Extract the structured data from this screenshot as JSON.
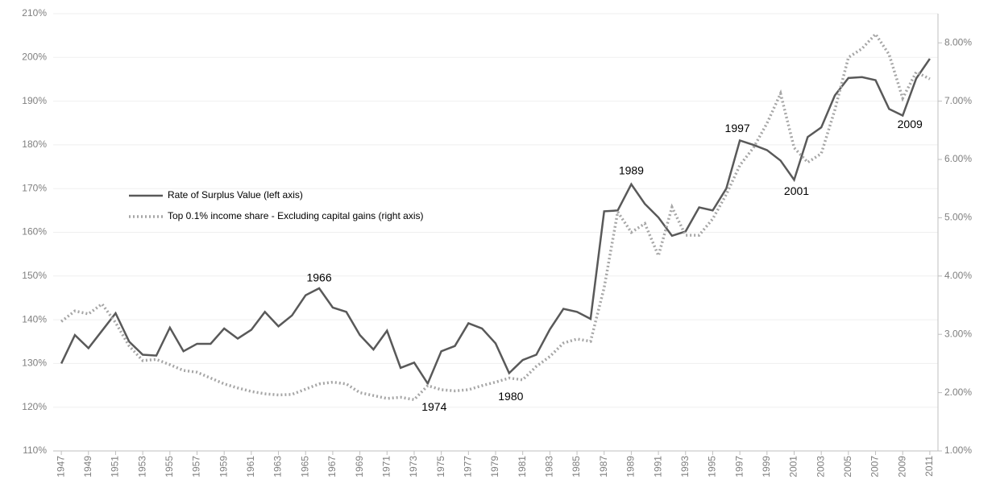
{
  "chart_data": {
    "type": "line",
    "x": [
      1947,
      1948,
      1949,
      1950,
      1951,
      1952,
      1953,
      1954,
      1955,
      1956,
      1957,
      1958,
      1959,
      1960,
      1961,
      1962,
      1963,
      1964,
      1965,
      1966,
      1967,
      1968,
      1969,
      1970,
      1971,
      1972,
      1973,
      1974,
      1975,
      1976,
      1977,
      1978,
      1979,
      1980,
      1981,
      1982,
      1983,
      1984,
      1985,
      1986,
      1987,
      1988,
      1989,
      1990,
      1991,
      1992,
      1993,
      1994,
      1995,
      1996,
      1997,
      1998,
      1999,
      2000,
      2001,
      2002,
      2003,
      2004,
      2005,
      2006,
      2007,
      2008,
      2009,
      2010,
      2011
    ],
    "xlim": [
      1946.4,
      2011.6
    ],
    "xticks": [
      1947,
      1949,
      1951,
      1953,
      1955,
      1957,
      1959,
      1961,
      1963,
      1965,
      1967,
      1969,
      1971,
      1973,
      1975,
      1977,
      1979,
      1981,
      1983,
      1985,
      1987,
      1989,
      1991,
      1993,
      1995,
      1997,
      1999,
      2001,
      2003,
      2005,
      2007,
      2009,
      2011
    ],
    "ylim": [
      110,
      210
    ],
    "yticks": [
      {
        "value": 110,
        "label": "110%"
      },
      {
        "value": 120,
        "label": "120%"
      },
      {
        "value": 130,
        "label": "130%"
      },
      {
        "value": 140,
        "label": "140%"
      },
      {
        "value": 150,
        "label": "150%"
      },
      {
        "value": 160,
        "label": "160%"
      },
      {
        "value": 170,
        "label": "170%"
      },
      {
        "value": 180,
        "label": "180%"
      },
      {
        "value": 190,
        "label": "190%"
      },
      {
        "value": 200,
        "label": "200%"
      },
      {
        "value": 210,
        "label": "210%"
      }
    ],
    "y2lim": [
      1,
      8.5
    ],
    "y2ticks": [
      {
        "value": 1,
        "label": "1.00%"
      },
      {
        "value": 2,
        "label": "2.00%"
      },
      {
        "value": 3,
        "label": "3.00%"
      },
      {
        "value": 4,
        "label": "4.00%"
      },
      {
        "value": 5,
        "label": "5.00%"
      },
      {
        "value": 6,
        "label": "6.00%"
      },
      {
        "value": 7,
        "label": "7.00%"
      },
      {
        "value": 8,
        "label": "8.00%"
      }
    ],
    "grid": true,
    "legend": "center-left",
    "series": [
      {
        "name": "Rate of Surplus Value (left axis)",
        "color": "#595959",
        "style": "solid",
        "values": [
          130,
          136.5,
          133.5,
          137.5,
          141.5,
          135,
          132,
          131.8,
          138.2,
          132.8,
          134.5,
          134.5,
          138,
          135.7,
          137.7,
          141.8,
          138.5,
          141,
          145.6,
          147.2,
          142.8,
          141.8,
          136.5,
          133.2,
          137.5,
          129,
          130.2,
          125.4,
          132.8,
          134,
          139.2,
          138,
          134.6,
          127.8,
          130.8,
          132,
          137.8,
          142.5,
          141.8,
          140.2,
          164.8,
          165,
          171,
          166.5,
          163.4,
          159.2,
          160.2,
          165.7,
          165,
          170,
          181,
          180,
          178.8,
          176.4,
          172,
          181.8,
          184,
          191.3,
          195.3,
          195.5,
          194.8,
          188.2,
          186.7,
          195.2,
          199.7
        ]
      },
      {
        "name": "Top 0.1% income share - Excluding capital gains (right axis)",
        "color": "#a6a6a6",
        "style": "dotted",
        "axis": "y2",
        "values": [
          3.22,
          3.4,
          3.35,
          3.52,
          3.2,
          2.8,
          2.55,
          2.57,
          2.48,
          2.38,
          2.35,
          2.25,
          2.15,
          2.08,
          2.02,
          1.98,
          1.96,
          1.97,
          2.06,
          2.15,
          2.18,
          2.15,
          2,
          1.95,
          1.9,
          1.92,
          1.88,
          2.12,
          2.05,
          2.03,
          2.05,
          2.12,
          2.18,
          2.25,
          2.22,
          2.45,
          2.62,
          2.85,
          2.92,
          2.88,
          3.8,
          5.1,
          4.75,
          4.9,
          4.35,
          5.18,
          4.7,
          4.7,
          4.98,
          5.4,
          5.9,
          6.2,
          6.62,
          7.13,
          6.2,
          5.95,
          6.1,
          6.85,
          7.75,
          7.9,
          8.15,
          7.8,
          7.05,
          7.5,
          7.38
        ]
      }
    ],
    "annotations": [
      "1966",
      "1974",
      "1980",
      "1989",
      "1997",
      "2001",
      "2009"
    ]
  }
}
